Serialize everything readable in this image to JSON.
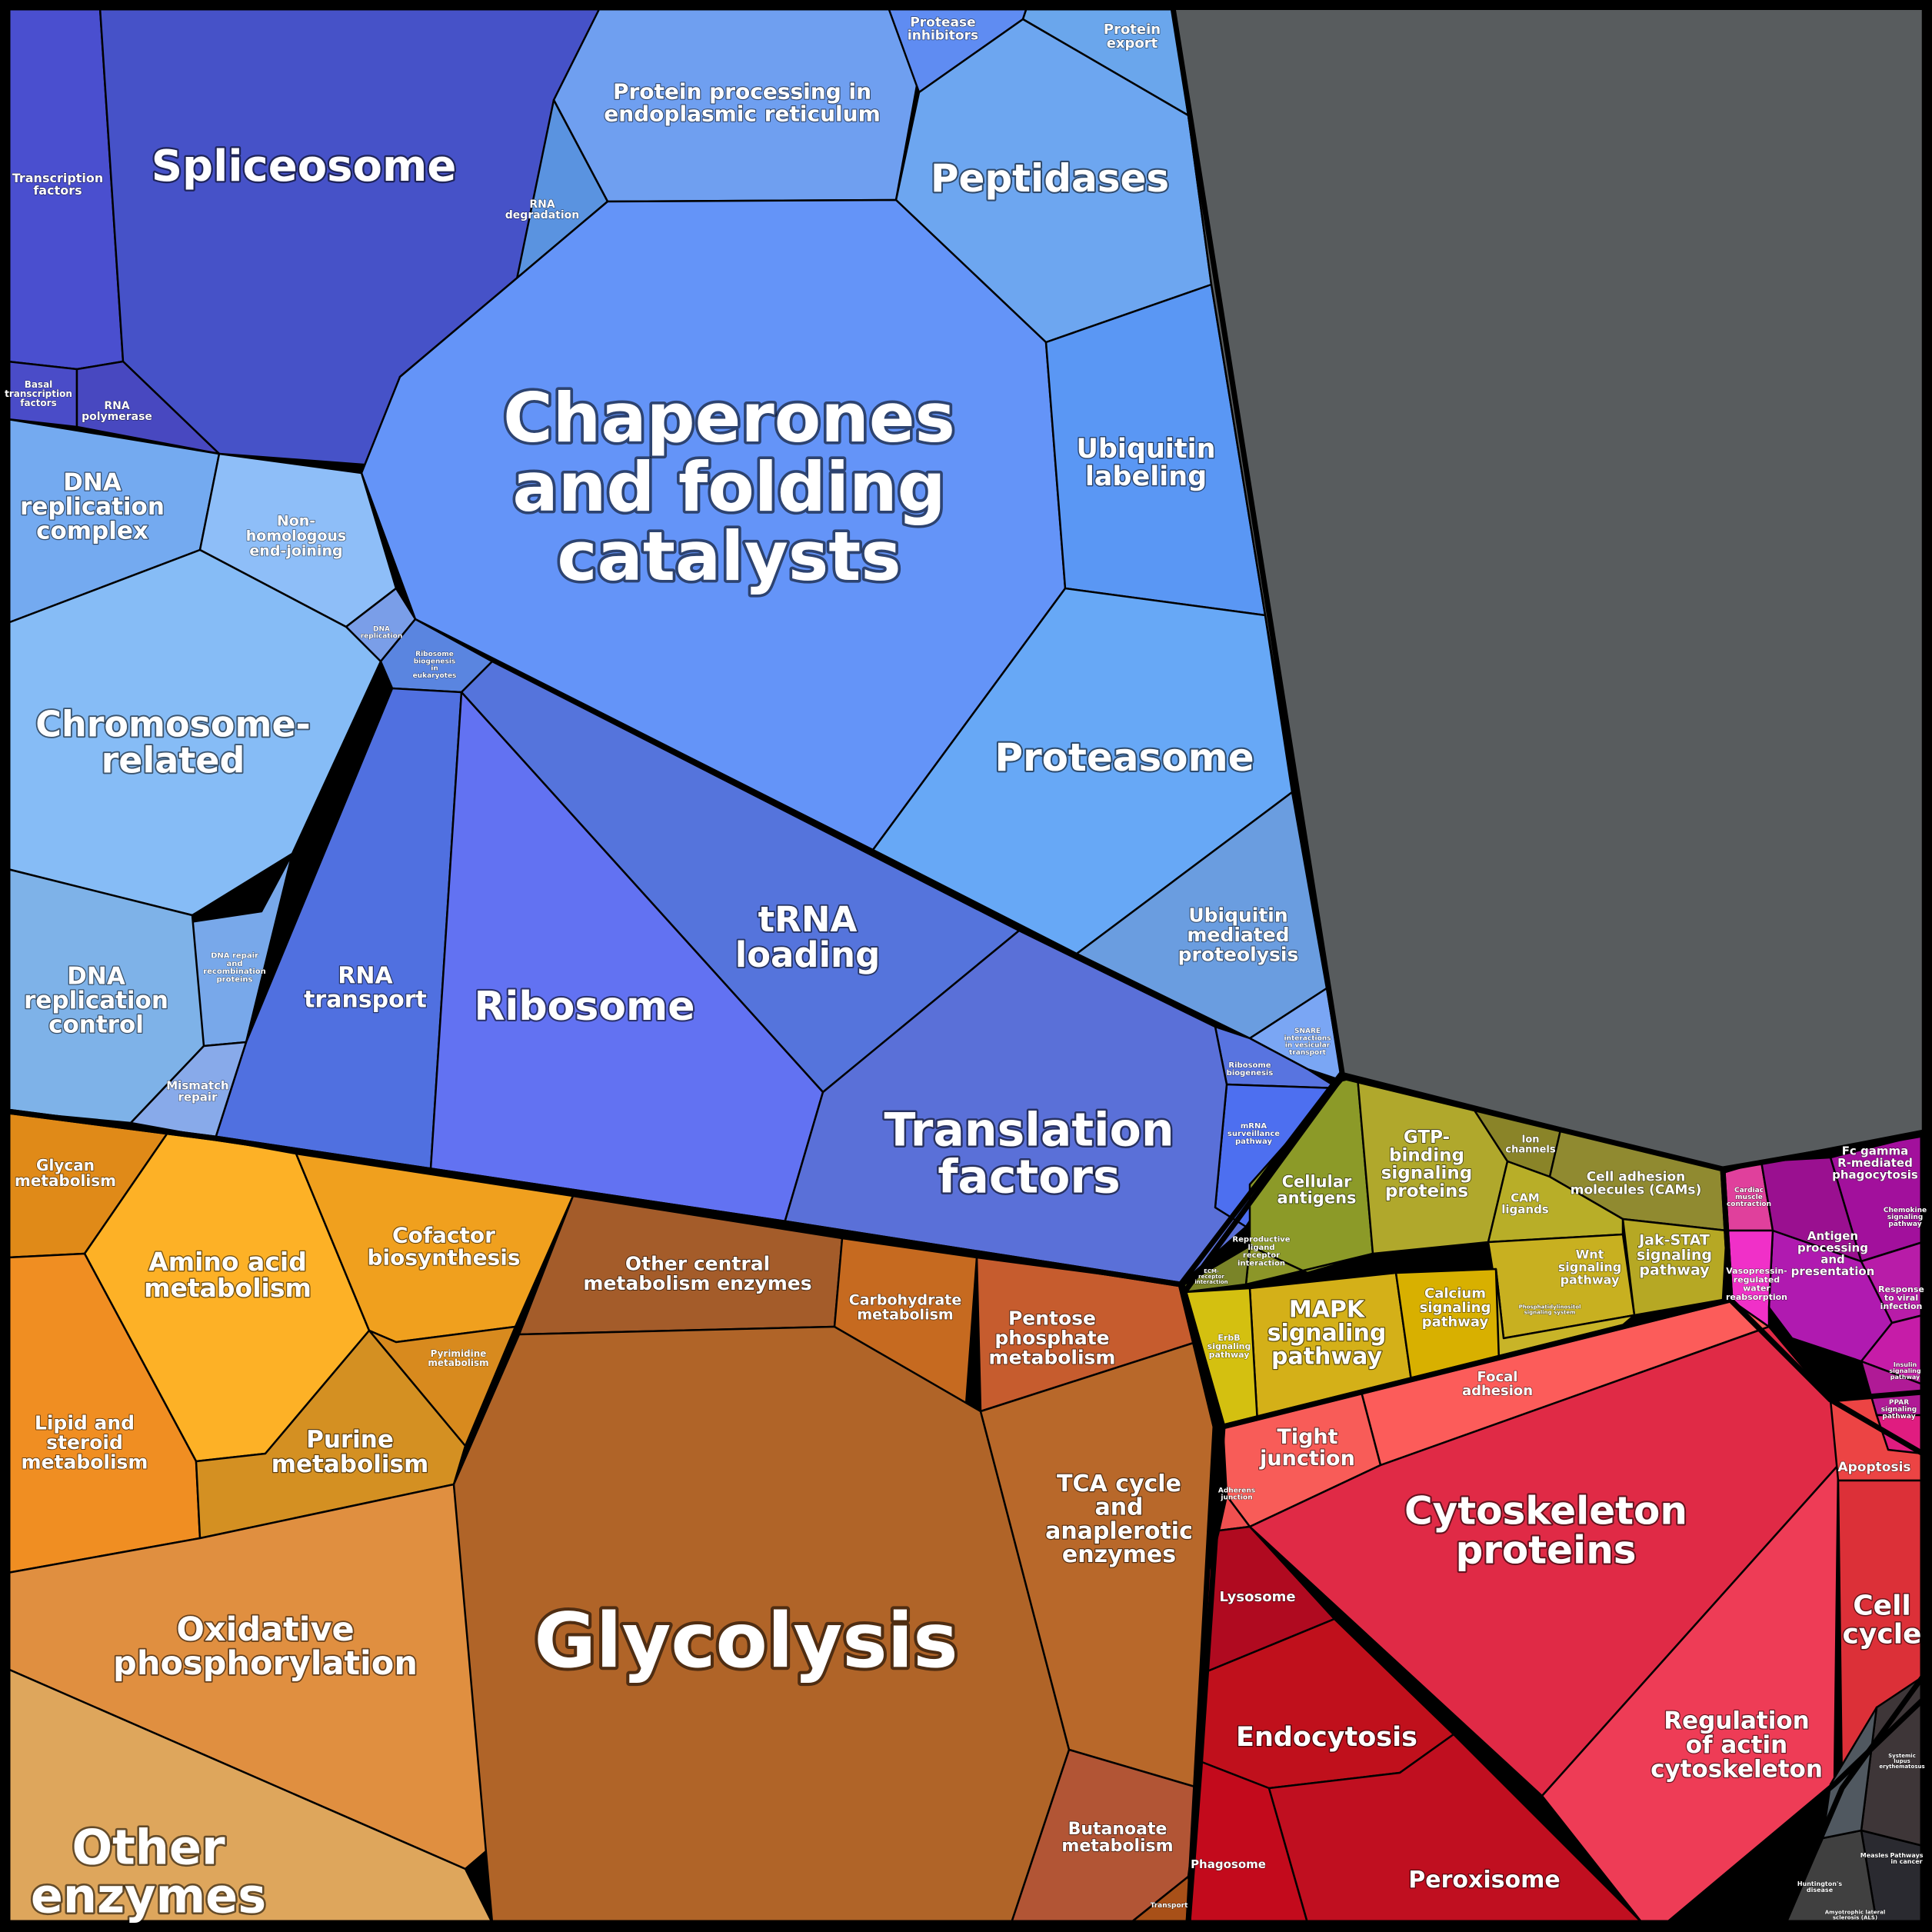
{
  "colors": {
    "frame": "#000000",
    "empty_region": "#585c5e",
    "genetic_information_processing": "#5b8cf0",
    "metabolism": "#d08a2c",
    "environmental_information_processing": "#b8a82a",
    "cellular_processes": "#e03a4a",
    "organismal_systems": "#c020b0",
    "human_diseases": "#3a3a3a"
  },
  "labels": {
    "transcription_factors": "Transcription\nfactors",
    "spliceosome": "Spliceosome",
    "basal_transcription_factors": "Basal\ntranscription\nfactors",
    "rna_polymerase": "RNA\npolymerase",
    "protein_processing_er": "Protein processing in\nendoplasmic reticulum",
    "protease_inhibitors": "Protease\ninhibitors",
    "protein_export": "Protein\nexport",
    "peptidases": "Peptidases",
    "rna_degradation": "RNA\ndegradation",
    "chaperones": "Chaperones\nand folding\ncatalysts",
    "ubiquitin_labeling": "Ubiquitin\nlabeling",
    "dna_replication_complex": "DNA\nreplication\ncomplex",
    "nhej": "Non-\nhomologous\nend-joining",
    "dna_replication": "DNA\nreplication",
    "ribosome_biogenesis_eukaryotes": "Ribosome\nbiogenesis\nin\neukaryotes",
    "chromosome_related": "Chromosome-\nrelated",
    "proteasome": "Proteasome",
    "ubiquitin_mediated_proteolysis": "Ubiquitin\nmediated\nproteolysis",
    "snare": "SNARE\ninteractions\nin vesicular\ntransport",
    "ribosome_biogenesis": "Ribosome\nbiogenesis",
    "mrna_surveillance": "mRNA\nsurveillance\npathway",
    "trna_loading": "tRNA\nloading",
    "rna_transport": "RNA\ntransport",
    "ribosome": "Ribosome",
    "translation_factors": "Translation\nfactors",
    "dna_repair_recombination": "DNA repair\nand\nrecombination\nproteins",
    "dna_replication_control": "DNA\nreplication\ncontrol",
    "mismatch_repair": "Mismatch\nrepair",
    "glycan_metabolism": "Glycan\nmetabolism",
    "amino_acid_metabolism": "Amino acid\nmetabolism",
    "cofactor_biosynthesis": "Cofactor\nbiosynthesis",
    "lipid_steroid_metabolism": "Lipid and\nsteroid\nmetabolism",
    "pyrimidine_metabolism": "Pyrimidine\nmetabolism",
    "purine_metabolism": "Purine\nmetabolism",
    "oxidative_phosphorylation": "Oxidative\nphosphorylation",
    "other_enzymes": "Other\nenzymes",
    "other_central_metabolism": "Other central\nmetabolism enzymes",
    "carbohydrate_metabolism": "Carbohydrate\nmetabolism",
    "pentose_phosphate": "Pentose\nphosphate\nmetabolism",
    "glycolysis": "Glycolysis",
    "tca_cycle": "TCA cycle\nand\nanaplerotic\nenzymes",
    "butanoate_metabolism": "Butanoate\nmetabolism",
    "transport": "Transport",
    "cellular_antigens": "Cellular\nantigens",
    "gtp_binding": "GTP-\nbinding\nsignaling\nproteins",
    "ion_channels": "Ion\nchannels",
    "cell_adhesion_molecules": "Cell adhesion\nmolecules (CAMs)",
    "cam_ligands": "CAM\nligands",
    "jak_stat": "Jak-STAT\nsignaling\npathway",
    "wnt": "Wnt\nsignaling\npathway",
    "mapk": "MAPK\nsignaling\npathway",
    "calcium_signaling": "Calcium\nsignaling\npathway",
    "erbb": "ErbB\nsignaling\npathway",
    "reproductive_ligand": "Reproductive\nligand\nreceptor\ninteraction",
    "ecm_receptor": "ECM-\nreceptor\ninteraction",
    "mtor": "mTOR signaling\npathway",
    "phosphatidylinositol": "Phosphatidylinositol\nsignaling system",
    "focal_adhesion": "Focal\nadhesion",
    "tight_junction": "Tight\njunction",
    "adherens_junction": "Adherens\njunction",
    "cytoskeleton_proteins": "Cytoskeleton\nproteins",
    "lysosome": "Lysosome",
    "endocytosis": "Endocytosis",
    "phagosome": "Phagosome",
    "peroxisome": "Peroxisome",
    "regulation_actin": "Regulation\nof actin\ncytoskeleton",
    "apoptosis": "Apoptosis",
    "cell_cycle": "Cell\ncycle",
    "fc_gamma": "Fc gamma\nR-mediated\nphagocytosis",
    "cardiac_contraction": "Cardiac\nmuscle\ncontraction",
    "antigen_processing": "Antigen\nprocessing\nand\npresentation",
    "chemokine": "Chemokine\nsignaling\npathway",
    "vasopressin": "Vasopressin-\nregulated\nwater\nreabsorption",
    "response_viral": "Response\nto viral\ninfection",
    "insulin": "Insulin\nsignaling\npathway",
    "ppar": "PPAR\nsignaling\npathway",
    "sle": "Systemic\nlupus\nerythematosus",
    "pathways_cancer": "Pathways\nin cancer",
    "huntingtons": "Huntington's\ndisease",
    "als": "Amyotrophic lateral\nsclerosis (ALS)",
    "measles": "Measles"
  }
}
